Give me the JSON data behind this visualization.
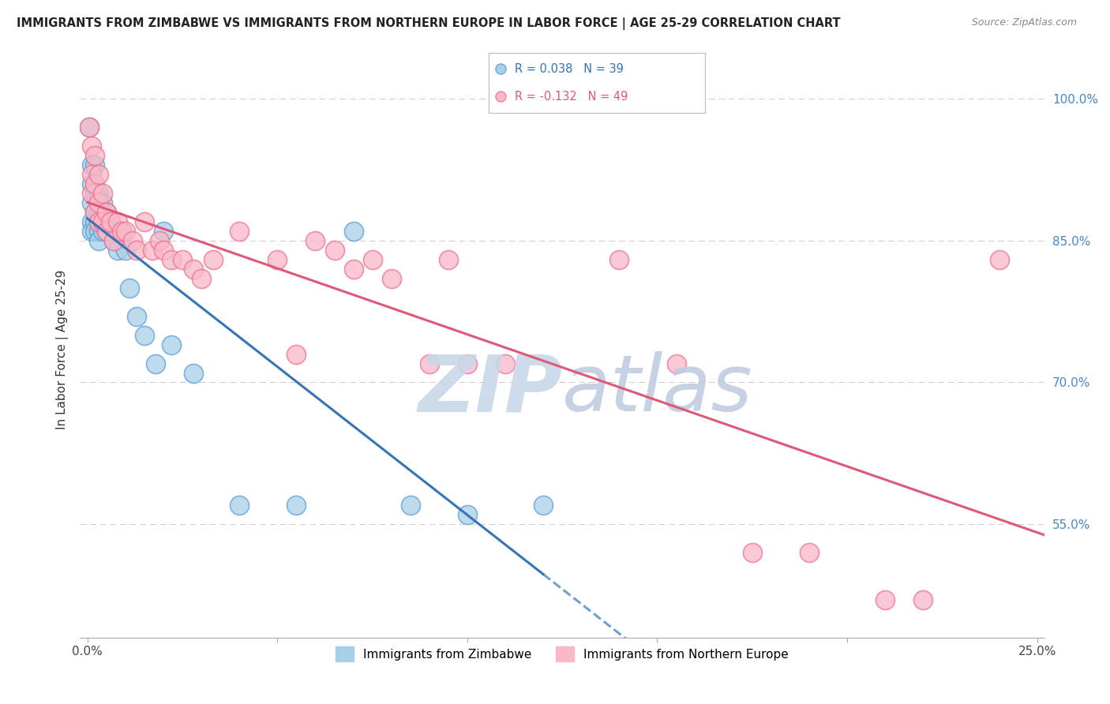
{
  "title": "IMMIGRANTS FROM ZIMBABWE VS IMMIGRANTS FROM NORTHERN EUROPE IN LABOR FORCE | AGE 25-29 CORRELATION CHART",
  "source": "Source: ZipAtlas.com",
  "ylabel": "In Labor Force | Age 25-29",
  "blue_label": "Immigrants from Zimbabwe",
  "pink_label": "Immigrants from Northern Europe",
  "blue_R": 0.038,
  "blue_N": 39,
  "pink_R": -0.132,
  "pink_N": 49,
  "blue_color": "#a8cfe8",
  "pink_color": "#f9b8c8",
  "blue_edge": "#5a9fd4",
  "pink_edge": "#f07090",
  "trend_blue": "#3575b5",
  "trend_pink": "#e05878",
  "xlim": [
    -0.002,
    0.252
  ],
  "ylim": [
    0.43,
    1.04
  ],
  "watermark_zip_color": "#c8d8e8",
  "watermark_atlas_color": "#c0cce0",
  "blue_x": [
    0.0005,
    0.001,
    0.001,
    0.001,
    0.001,
    0.001,
    0.002,
    0.002,
    0.002,
    0.002,
    0.002,
    0.003,
    0.003,
    0.003,
    0.003,
    0.003,
    0.004,
    0.004,
    0.004,
    0.005,
    0.005,
    0.006,
    0.007,
    0.008,
    0.009,
    0.01,
    0.011,
    0.013,
    0.015,
    0.018,
    0.02,
    0.022,
    0.028,
    0.04,
    0.055,
    0.07,
    0.085,
    0.1,
    0.12
  ],
  "blue_y": [
    0.97,
    0.93,
    0.91,
    0.89,
    0.87,
    0.86,
    0.93,
    0.9,
    0.88,
    0.87,
    0.86,
    0.9,
    0.88,
    0.87,
    0.86,
    0.85,
    0.89,
    0.87,
    0.86,
    0.88,
    0.86,
    0.87,
    0.85,
    0.84,
    0.86,
    0.84,
    0.8,
    0.77,
    0.75,
    0.72,
    0.86,
    0.74,
    0.71,
    0.57,
    0.57,
    0.86,
    0.57,
    0.56,
    0.57
  ],
  "pink_x": [
    0.0005,
    0.001,
    0.001,
    0.001,
    0.002,
    0.002,
    0.002,
    0.003,
    0.003,
    0.003,
    0.004,
    0.004,
    0.005,
    0.005,
    0.006,
    0.007,
    0.008,
    0.009,
    0.01,
    0.012,
    0.013,
    0.015,
    0.017,
    0.019,
    0.02,
    0.022,
    0.025,
    0.028,
    0.03,
    0.033,
    0.04,
    0.05,
    0.055,
    0.06,
    0.065,
    0.07,
    0.075,
    0.08,
    0.09,
    0.095,
    0.1,
    0.11,
    0.14,
    0.155,
    0.175,
    0.19,
    0.21,
    0.22,
    0.24
  ],
  "pink_y": [
    0.97,
    0.95,
    0.92,
    0.9,
    0.94,
    0.91,
    0.88,
    0.92,
    0.89,
    0.87,
    0.9,
    0.87,
    0.88,
    0.86,
    0.87,
    0.85,
    0.87,
    0.86,
    0.86,
    0.85,
    0.84,
    0.87,
    0.84,
    0.85,
    0.84,
    0.83,
    0.83,
    0.82,
    0.81,
    0.83,
    0.86,
    0.83,
    0.73,
    0.85,
    0.84,
    0.82,
    0.83,
    0.81,
    0.72,
    0.83,
    0.72,
    0.72,
    0.83,
    0.72,
    0.52,
    0.52,
    0.47,
    0.47,
    0.83
  ],
  "ytick_vals": [
    0.55,
    0.7,
    0.85,
    1.0
  ],
  "ytick_labels": [
    "55.0%",
    "70.0%",
    "85.0%",
    "100.0%"
  ],
  "xtick_positions": [
    0.0,
    0.05,
    0.1,
    0.15,
    0.2,
    0.25
  ],
  "xtick_labels": [
    "0.0%",
    "",
    "",
    "",
    "",
    "25.0%"
  ]
}
